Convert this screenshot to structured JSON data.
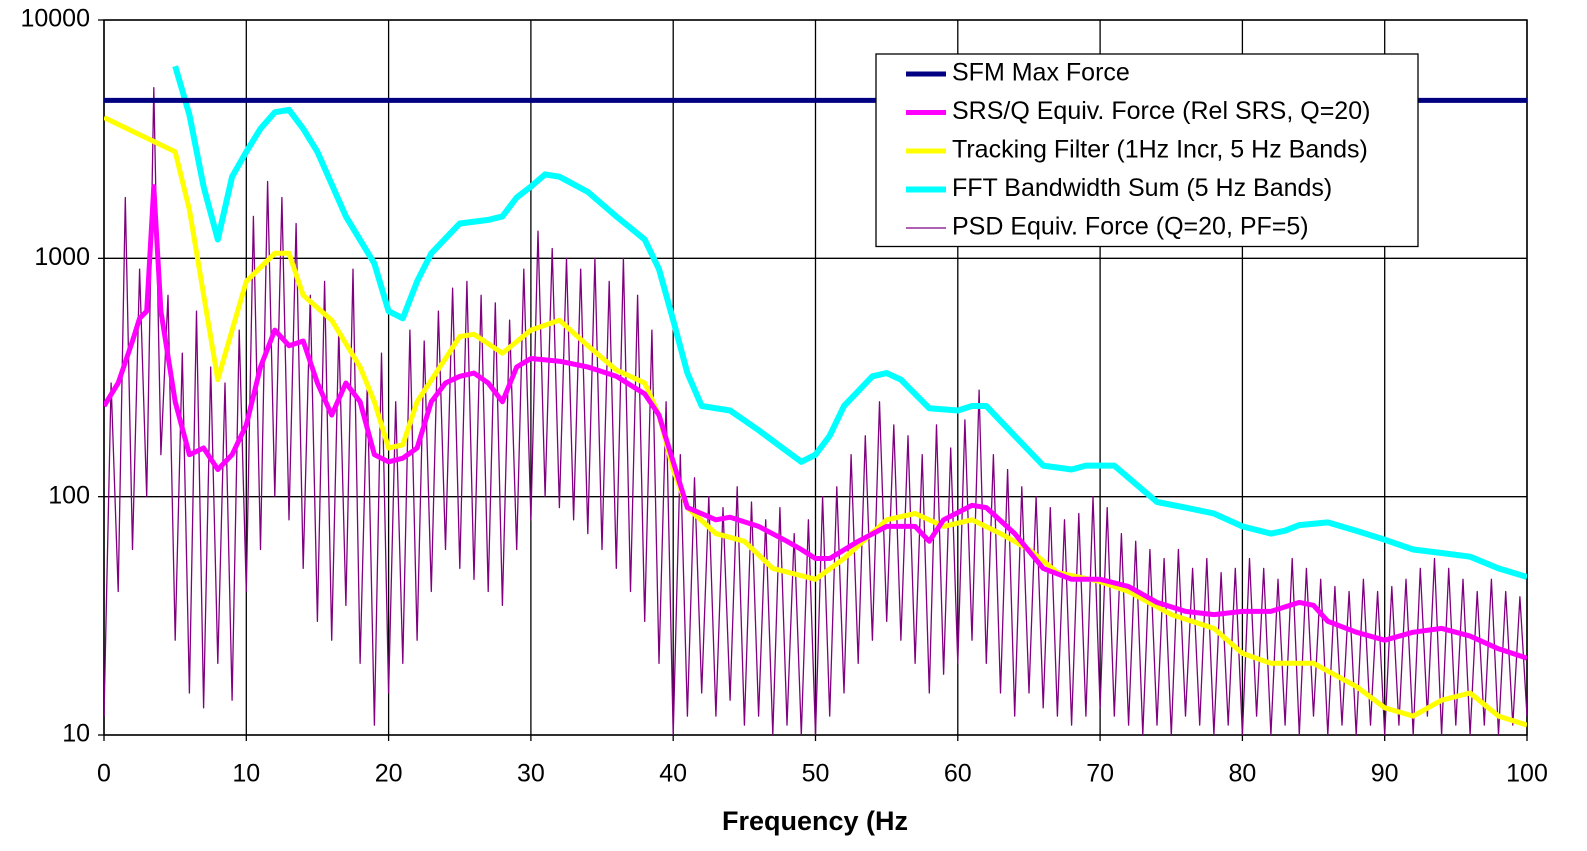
{
  "chart_data": {
    "type": "line",
    "x_label": "Frequency (Hz",
    "log_y": true,
    "grid": true,
    "legend": "upper right",
    "xlim": [
      0,
      100
    ],
    "xticks": [
      0,
      10,
      20,
      30,
      40,
      50,
      60,
      70,
      80,
      90,
      100
    ],
    "ylim": [
      10,
      10000
    ],
    "yticks": [
      10,
      100,
      1000,
      10000
    ],
    "series": [
      {
        "name": "SFM Max Force",
        "color": "#000080",
        "x": [
          0,
          100
        ],
        "values": [
          4600,
          4600
        ]
      },
      {
        "name": "SRS/Q Equiv. Force (Rel SRS, Q=20)",
        "color": "#ff00ff",
        "x": [
          0,
          1,
          2,
          2.5,
          3,
          3.5,
          4,
          5,
          6,
          7,
          8,
          9,
          10,
          11,
          12,
          13,
          14,
          15,
          16,
          17,
          18,
          19,
          20,
          21,
          22,
          23,
          24,
          25,
          26,
          27,
          28,
          29,
          30,
          32,
          34,
          36,
          38,
          39,
          40,
          41,
          43,
          44,
          46,
          48,
          49,
          50,
          51,
          53,
          55,
          57,
          58,
          59,
          61,
          62,
          64,
          66,
          68,
          70,
          72,
          74,
          76,
          78,
          80,
          82,
          84,
          85,
          86,
          88,
          90,
          92,
          94,
          96,
          98,
          100
        ],
        "values": [
          240,
          300,
          450,
          560,
          600,
          2000,
          600,
          250,
          150,
          160,
          130,
          150,
          200,
          350,
          500,
          430,
          450,
          300,
          220,
          300,
          250,
          150,
          140,
          145,
          160,
          250,
          300,
          320,
          330,
          300,
          250,
          350,
          380,
          370,
          350,
          320,
          270,
          220,
          140,
          90,
          80,
          82,
          75,
          65,
          60,
          55,
          55,
          65,
          75,
          75,
          65,
          80,
          92,
          90,
          70,
          50,
          45,
          45,
          42,
          36,
          33,
          32,
          33,
          33,
          36,
          35,
          30,
          27,
          25,
          27,
          28,
          26,
          23,
          21
        ]
      },
      {
        "name": "Tracking Filter (1Hz Incr, 5 Hz Bands)",
        "color": "#ffff00",
        "x": [
          0,
          5,
          6,
          8,
          9,
          10,
          12,
          13,
          14,
          16,
          18,
          19,
          20,
          21,
          22,
          24,
          25,
          26,
          28,
          30,
          32,
          34,
          36,
          38,
          39,
          40,
          41,
          43,
          45,
          47,
          50,
          52,
          55,
          57,
          59,
          61,
          63,
          65,
          67,
          70,
          72,
          75,
          78,
          80,
          82,
          85,
          88,
          90,
          92,
          94,
          96,
          98,
          100
        ],
        "values": [
          3900,
          2800,
          1600,
          310,
          500,
          800,
          1050,
          1050,
          700,
          550,
          350,
          250,
          160,
          165,
          250,
          380,
          470,
          480,
          400,
          500,
          550,
          430,
          340,
          300,
          220,
          130,
          90,
          70,
          65,
          50,
          45,
          55,
          80,
          85,
          75,
          80,
          70,
          60,
          48,
          44,
          40,
          32,
          28,
          22,
          20,
          20,
          16,
          13,
          12,
          14,
          15,
          12,
          11
        ]
      },
      {
        "name": "FFT Bandwidth Sum (5 Hz Bands)",
        "color": "#00ffff",
        "x": [
          5,
          6,
          7,
          8,
          9,
          10,
          11,
          12,
          13,
          14,
          15,
          17,
          19,
          20,
          21,
          22,
          23,
          25,
          27,
          28,
          29,
          30,
          31,
          32,
          34,
          36,
          38,
          39,
          40,
          41,
          42,
          44,
          46,
          48,
          49,
          50,
          51,
          52,
          54,
          55,
          56,
          58,
          60,
          61,
          62,
          64,
          66,
          68,
          69,
          71,
          72,
          74,
          76,
          78,
          80,
          82,
          83,
          84,
          86,
          88,
          90,
          92,
          94,
          96,
          98,
          100
        ],
        "values": [
          6400,
          4000,
          2000,
          1200,
          2200,
          2800,
          3500,
          4100,
          4200,
          3500,
          2800,
          1500,
          950,
          600,
          560,
          800,
          1050,
          1400,
          1450,
          1500,
          1800,
          2000,
          2250,
          2200,
          1900,
          1500,
          1200,
          900,
          550,
          330,
          240,
          230,
          190,
          155,
          140,
          150,
          180,
          240,
          320,
          330,
          310,
          235,
          230,
          240,
          240,
          180,
          135,
          130,
          135,
          135,
          120,
          95,
          90,
          85,
          75,
          70,
          72,
          76,
          78,
          72,
          66,
          60,
          58,
          56,
          50,
          46
        ]
      },
      {
        "name": "PSD Equiv. Force (Q=20, PF=5)",
        "color": "#800080",
        "x": [
          0,
          0.5,
          1,
          1.5,
          2,
          2.5,
          3,
          3.5,
          4,
          4.5,
          5,
          5.5,
          6,
          6.5,
          7,
          7.5,
          8,
          8.5,
          9,
          9.5,
          10,
          10.5,
          11,
          11.5,
          12,
          12.5,
          13,
          13.5,
          14,
          14.5,
          15,
          15.5,
          16,
          16.5,
          17,
          17.5,
          18,
          18.5,
          19,
          19.5,
          20,
          20.5,
          21,
          21.5,
          22,
          22.5,
          23,
          23.5,
          24,
          24.5,
          25,
          25.5,
          26,
          26.5,
          27,
          27.5,
          28,
          28.5,
          29,
          29.5,
          30,
          30.5,
          31,
          31.5,
          32,
          32.5,
          33,
          33.5,
          34,
          34.5,
          35,
          35.5,
          36,
          36.5,
          37,
          37.5,
          38,
          38.5,
          39,
          39.5,
          40,
          40.5,
          41,
          41.5,
          42,
          42.5,
          43,
          43.5,
          44,
          44.5,
          45,
          45.5,
          46,
          46.5,
          47,
          47.5,
          48,
          48.5,
          49,
          49.5,
          50,
          50.5,
          51,
          51.5,
          52,
          52.5,
          53,
          53.5,
          54,
          54.5,
          55,
          55.5,
          56,
          56.5,
          57,
          57.5,
          58,
          58.5,
          59,
          59.5,
          60,
          60.5,
          61,
          61.5,
          62,
          62.5,
          63,
          63.5,
          64,
          64.5,
          65,
          65.5,
          66,
          66.5,
          67,
          67.5,
          68,
          68.5,
          69,
          69.5,
          70,
          70.5,
          71,
          71.5,
          72,
          72.5,
          73,
          73.5,
          74,
          74.5,
          75,
          75.5,
          76,
          76.5,
          77,
          77.5,
          78,
          78.5,
          79,
          79.5,
          80,
          80.5,
          81,
          81.5,
          82,
          82.5,
          83,
          83.5,
          84,
          84.5,
          85,
          85.5,
          86,
          86.5,
          87,
          87.5,
          88,
          88.5,
          89,
          89.5,
          90,
          90.5,
          91,
          91.5,
          92,
          92.5,
          93,
          93.5,
          94,
          94.5,
          95,
          95.5,
          96,
          96.5,
          97,
          97.5,
          98,
          98.5,
          99,
          99.5,
          100
        ],
        "values": [
          12,
          300,
          40,
          1800,
          60,
          900,
          100,
          5200,
          150,
          700,
          25,
          400,
          15,
          600,
          13,
          350,
          20,
          300,
          14,
          500,
          40,
          1500,
          60,
          2100,
          100,
          1800,
          80,
          1400,
          50,
          700,
          30,
          800,
          25,
          500,
          35,
          900,
          20,
          300,
          11,
          400,
          15,
          250,
          20,
          500,
          25,
          450,
          40,
          600,
          60,
          750,
          50,
          800,
          45,
          700,
          40,
          650,
          35,
          550,
          60,
          900,
          80,
          1300,
          100,
          1100,
          90,
          1000,
          80,
          900,
          70,
          1000,
          60,
          800,
          50,
          1000,
          40,
          700,
          30,
          500,
          20,
          250,
          10,
          150,
          12,
          120,
          15,
          100,
          12,
          90,
          14,
          110,
          11,
          95,
          12,
          80,
          10,
          90,
          11,
          70,
          10,
          80,
          10,
          100,
          12,
          110,
          15,
          150,
          20,
          180,
          25,
          250,
          30,
          200,
          25,
          180,
          20,
          150,
          15,
          200,
          18,
          160,
          20,
          210,
          25,
          280,
          20,
          150,
          15,
          130,
          12,
          110,
          15,
          100,
          13,
          90,
          12,
          80,
          11,
          85,
          12,
          100,
          13,
          90,
          12,
          70,
          11,
          65,
          10,
          60,
          11,
          55,
          10,
          60,
          12,
          50,
          11,
          55,
          10,
          48,
          11,
          50,
          10,
          55,
          12,
          50,
          10,
          45,
          11,
          55,
          10,
          50,
          12,
          45,
          10,
          42,
          11,
          40,
          10,
          45,
          11,
          40,
          10,
          42,
          11,
          45,
          10,
          50,
          12,
          55,
          10,
          50,
          11,
          45,
          10,
          40,
          11,
          45,
          10,
          40,
          11,
          38,
          12
        ]
      }
    ]
  }
}
